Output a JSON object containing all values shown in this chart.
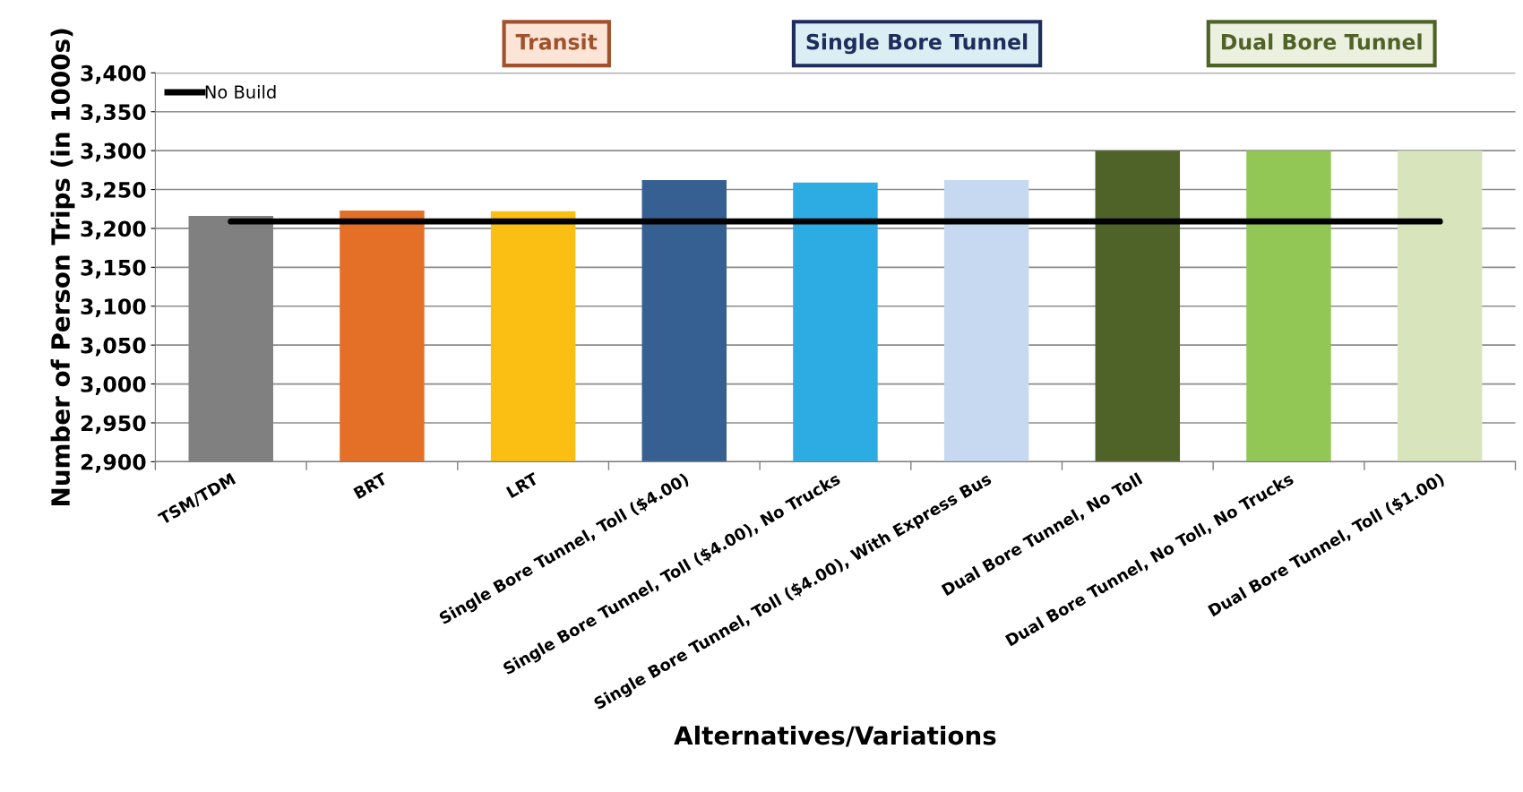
{
  "chart_data": {
    "type": "bar",
    "xlabel": "Alternatives/Variations",
    "ylabel": "Number of Person Trips (in 1000s)",
    "categories": [
      "TSM/TDM",
      "BRT",
      "LRT",
      "Single Bore Tunnel, Toll ($4.00)",
      "Single Bore Tunnel, Toll ($4.00), No Trucks",
      "Single Bore Tunnel, Toll ($4.00), With Express Bus",
      "Dual Bore Tunnel, No Toll",
      "Dual Bore Tunnel, No Toll, No Trucks",
      "Dual Bore Tunnel, Toll ($1.00)"
    ],
    "values": [
      3216,
      3223,
      3222,
      3262,
      3259,
      3262,
      3300,
      3300,
      3300
    ],
    "colors": [
      "#808080",
      "#e46f26",
      "#fbbf13",
      "#366092",
      "#2dace3",
      "#c6d9f1",
      "#4f6228",
      "#92c756",
      "#d8e4bc"
    ],
    "ylim": [
      2900,
      3400
    ],
    "yticks": [
      {
        "value": 2900,
        "label": "2,900"
      },
      {
        "value": 2950,
        "label": "2,950"
      },
      {
        "value": 3000,
        "label": "3,000"
      },
      {
        "value": 3050,
        "label": "3,050"
      },
      {
        "value": 3100,
        "label": "3,100"
      },
      {
        "value": 3150,
        "label": "3,150"
      },
      {
        "value": 3200,
        "label": "3,200"
      },
      {
        "value": 3250,
        "label": "3,250"
      },
      {
        "value": 3300,
        "label": "3,300"
      },
      {
        "value": 3350,
        "label": "3,350"
      },
      {
        "value": 3400,
        "label": "3,400"
      }
    ],
    "grid": "y",
    "legend": "top left",
    "ref_lines": [
      {
        "axis": "y",
        "value": 3209,
        "label": "No Build",
        "color": "#000000",
        "line_style": "solid"
      }
    ],
    "annotations": [
      "Transit",
      "Single Bore Tunnel",
      "Dual Bore Tunnel"
    ]
  }
}
